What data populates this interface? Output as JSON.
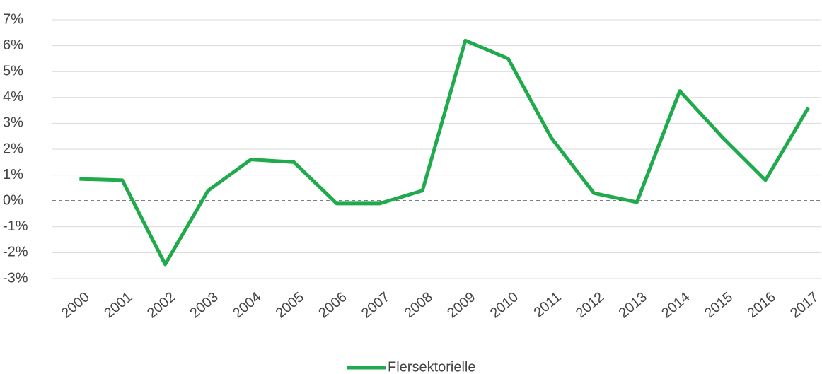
{
  "chart_data": {
    "type": "line",
    "categories": [
      "2000",
      "2001",
      "2002",
      "2003",
      "2004",
      "2005",
      "2006",
      "2007",
      "2008",
      "2009",
      "2010",
      "2011",
      "2012",
      "2013",
      "2014",
      "2015",
      "2016",
      "2017"
    ],
    "series": [
      {
        "name": "Flersektorielle",
        "color": "#1faa4b",
        "values": [
          0.85,
          0.8,
          -2.45,
          0.4,
          1.6,
          1.5,
          -0.1,
          -0.1,
          0.4,
          6.2,
          5.5,
          2.45,
          0.3,
          -0.05,
          4.25,
          2.45,
          0.8,
          3.6
        ]
      }
    ],
    "ylim": [
      -3,
      7
    ],
    "yticks": [
      {
        "value": -3,
        "label": "-3%"
      },
      {
        "value": -2,
        "label": "-2%"
      },
      {
        "value": -1,
        "label": "-1%"
      },
      {
        "value": 0,
        "label": "0%"
      },
      {
        "value": 1,
        "label": "1%"
      },
      {
        "value": 2,
        "label": "2%"
      },
      {
        "value": 3,
        "label": "3%"
      },
      {
        "value": 4,
        "label": "4%"
      },
      {
        "value": 5,
        "label": "5%"
      },
      {
        "value": 6,
        "label": "6%"
      },
      {
        "value": 7,
        "label": "7%"
      }
    ],
    "grid": true,
    "zero_line_dashed": true,
    "legend": "bottom"
  }
}
